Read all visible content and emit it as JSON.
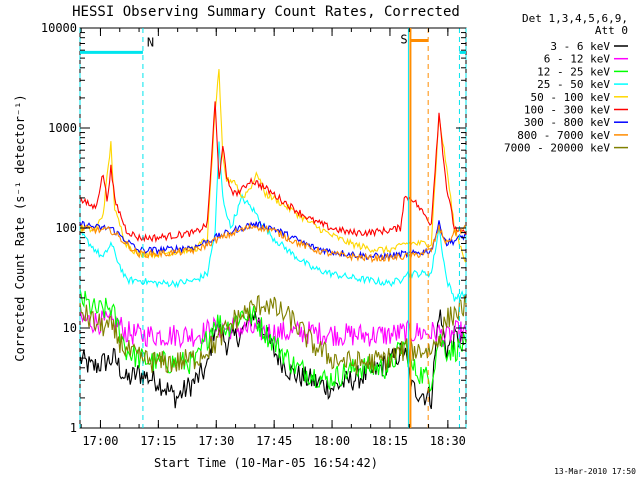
{
  "chart_data": {
    "type": "line",
    "title": "HESSI Observing Summary Count Rates, Corrected",
    "xlabel": "Start Time (10-Mar-05 16:54:42)",
    "ylabel": "Corrected Count Rate (s⁻¹ detector⁻¹)",
    "yscale": "log",
    "ylim": [
      1,
      10000
    ],
    "xlim_minutes": [
      0,
      100
    ],
    "x_units": "minutes after 16:54:42",
    "x_tick_labels": [
      "17:00",
      "17:15",
      "17:30",
      "17:45",
      "18:00",
      "18:15",
      "18:30"
    ],
    "x_tick_minutes": [
      5.3,
      20.3,
      35.3,
      50.3,
      65.3,
      80.3,
      95.3
    ],
    "y_tick_labels": [
      "1",
      "10",
      "100",
      "1000",
      "10000"
    ],
    "y_tick_values": [
      1,
      10,
      100,
      1000,
      10000
    ],
    "legend_header": [
      "Det 1,3,4,5,6,9,",
      "Att 0"
    ],
    "legend_placement": "right",
    "timestamp": "13-Mar-2010 17:50",
    "annotations": [
      {
        "text": "N",
        "color": "#00e5ee"
      },
      {
        "text": "S",
        "color": "#ff8c00"
      }
    ],
    "night_intervals": [
      [
        0,
        16.3
      ],
      [
        98.3,
        100
      ]
    ],
    "saa_interval": [
      85.6,
      90.2
    ],
    "series": [
      {
        "name": "3 - 6 keV",
        "color": "#000000",
        "points": [
          [
            0,
            5
          ],
          [
            3,
            4
          ],
          [
            6,
            4.5
          ],
          [
            9,
            5
          ],
          [
            12,
            3
          ],
          [
            15,
            3.5
          ],
          [
            20,
            3
          ],
          [
            25,
            2
          ],
          [
            30,
            3
          ],
          [
            33,
            4
          ],
          [
            35,
            11
          ],
          [
            38,
            7
          ],
          [
            42,
            9
          ],
          [
            45,
            14
          ],
          [
            48,
            9
          ],
          [
            50,
            6
          ],
          [
            55,
            3.5
          ],
          [
            60,
            3
          ],
          [
            65,
            2.5
          ],
          [
            70,
            3
          ],
          [
            75,
            3.5
          ],
          [
            80,
            4.5
          ],
          [
            84,
            6
          ],
          [
            86,
            2.5
          ],
          [
            91,
            2
          ],
          [
            93,
            15
          ],
          [
            95,
            6
          ],
          [
            97,
            8
          ],
          [
            100,
            7
          ]
        ]
      },
      {
        "name": "6 - 12 keV",
        "color": "#ff00ff",
        "points": [
          [
            0,
            12
          ],
          [
            10,
            11
          ],
          [
            12,
            9
          ],
          [
            15,
            8.5
          ],
          [
            20,
            8.5
          ],
          [
            30,
            8.5
          ],
          [
            35,
            10
          ],
          [
            40,
            10
          ],
          [
            50,
            9
          ],
          [
            60,
            9
          ],
          [
            70,
            8.5
          ],
          [
            80,
            8.5
          ],
          [
            84,
            9
          ],
          [
            86,
            9
          ],
          [
            91,
            9
          ],
          [
            93,
            9
          ],
          [
            95,
            8
          ],
          [
            97,
            9
          ],
          [
            100,
            9
          ]
        ]
      },
      {
        "name": "12 - 25 keV",
        "color": "#00ff00",
        "points": [
          [
            0,
            20
          ],
          [
            4,
            15
          ],
          [
            6,
            15
          ],
          [
            8,
            16
          ],
          [
            10,
            10
          ],
          [
            12,
            6
          ],
          [
            15,
            5
          ],
          [
            20,
            4.5
          ],
          [
            25,
            4.5
          ],
          [
            30,
            4.5
          ],
          [
            33,
            8
          ],
          [
            35,
            12
          ],
          [
            38,
            10
          ],
          [
            42,
            14
          ],
          [
            45,
            13
          ],
          [
            48,
            9
          ],
          [
            52,
            6
          ],
          [
            56,
            4
          ],
          [
            60,
            3.5
          ],
          [
            64,
            3
          ],
          [
            68,
            3.5
          ],
          [
            72,
            4
          ],
          [
            76,
            4
          ],
          [
            80,
            4
          ],
          [
            84,
            7
          ],
          [
            86,
            4
          ],
          [
            91,
            3
          ],
          [
            93,
            8
          ],
          [
            95,
            6
          ],
          [
            97,
            6
          ],
          [
            100,
            7
          ]
        ]
      },
      {
        "name": "25 - 50 keV",
        "color": "#00ffff",
        "points": [
          [
            0,
            90
          ],
          [
            4,
            60
          ],
          [
            6,
            50
          ],
          [
            8,
            70
          ],
          [
            10,
            45
          ],
          [
            12,
            30
          ],
          [
            15,
            30
          ],
          [
            20,
            28
          ],
          [
            25,
            28
          ],
          [
            30,
            30
          ],
          [
            33,
            35
          ],
          [
            35,
            90
          ],
          [
            36,
            700
          ],
          [
            37,
            200
          ],
          [
            39,
            100
          ],
          [
            42,
            200
          ],
          [
            45,
            150
          ],
          [
            48,
            100
          ],
          [
            50,
            80
          ],
          [
            55,
            55
          ],
          [
            60,
            40
          ],
          [
            65,
            35
          ],
          [
            70,
            32
          ],
          [
            75,
            30
          ],
          [
            80,
            28
          ],
          [
            83,
            30
          ],
          [
            84,
            35
          ],
          [
            86,
            35
          ],
          [
            91,
            35
          ],
          [
            93,
            100
          ],
          [
            95,
            30
          ],
          [
            97,
            20
          ],
          [
            100,
            22
          ]
        ]
      },
      {
        "name": "50 - 100 keV",
        "color": "#ffd700",
        "points": [
          [
            0,
            100
          ],
          [
            4,
            95
          ],
          [
            6,
            140
          ],
          [
            8,
            700
          ],
          [
            9,
            150
          ],
          [
            12,
            70
          ],
          [
            15,
            55
          ],
          [
            20,
            55
          ],
          [
            25,
            58
          ],
          [
            30,
            62
          ],
          [
            33,
            80
          ],
          [
            35,
            1500
          ],
          [
            36,
            3600
          ],
          [
            37,
            500
          ],
          [
            38,
            300
          ],
          [
            40,
            300
          ],
          [
            42,
            200
          ],
          [
            44,
            250
          ],
          [
            46,
            350
          ],
          [
            48,
            220
          ],
          [
            50,
            200
          ],
          [
            55,
            150
          ],
          [
            60,
            110
          ],
          [
            65,
            85
          ],
          [
            70,
            70
          ],
          [
            75,
            62
          ],
          [
            80,
            60
          ],
          [
            83,
            65
          ],
          [
            84,
            70
          ],
          [
            86,
            70
          ],
          [
            91,
            70
          ],
          [
            93,
            1300
          ],
          [
            95,
            400
          ],
          [
            97,
            100
          ],
          [
            100,
            45
          ]
        ]
      },
      {
        "name": "100 - 300 keV",
        "color": "#ff0000",
        "points": [
          [
            0,
            190
          ],
          [
            4,
            160
          ],
          [
            6,
            350
          ],
          [
            7,
            190
          ],
          [
            8,
            400
          ],
          [
            9,
            190
          ],
          [
            12,
            95
          ],
          [
            15,
            80
          ],
          [
            20,
            80
          ],
          [
            25,
            85
          ],
          [
            30,
            90
          ],
          [
            33,
            110
          ],
          [
            35,
            1800
          ],
          [
            36,
            300
          ],
          [
            37,
            700
          ],
          [
            38,
            300
          ],
          [
            40,
            220
          ],
          [
            42,
            240
          ],
          [
            44,
            300
          ],
          [
            46,
            280
          ],
          [
            48,
            250
          ],
          [
            50,
            220
          ],
          [
            55,
            160
          ],
          [
            60,
            120
          ],
          [
            65,
            100
          ],
          [
            70,
            90
          ],
          [
            75,
            90
          ],
          [
            80,
            95
          ],
          [
            83,
            100
          ],
          [
            84,
            200
          ],
          [
            86,
            200
          ],
          [
            91,
            110
          ],
          [
            93,
            1400
          ],
          [
            95,
            250
          ],
          [
            97,
            100
          ],
          [
            100,
            85
          ]
        ]
      },
      {
        "name": "300 - 800 keV",
        "color": "#0000ff",
        "points": [
          [
            0,
            110
          ],
          [
            5,
            100
          ],
          [
            8,
            100
          ],
          [
            12,
            75
          ],
          [
            15,
            60
          ],
          [
            20,
            60
          ],
          [
            25,
            62
          ],
          [
            30,
            65
          ],
          [
            35,
            80
          ],
          [
            40,
            95
          ],
          [
            45,
            110
          ],
          [
            50,
            100
          ],
          [
            55,
            80
          ],
          [
            60,
            65
          ],
          [
            65,
            58
          ],
          [
            70,
            55
          ],
          [
            75,
            52
          ],
          [
            80,
            52
          ],
          [
            84,
            55
          ],
          [
            86,
            55
          ],
          [
            91,
            60
          ],
          [
            93,
            110
          ],
          [
            95,
            70
          ],
          [
            97,
            75
          ],
          [
            100,
            85
          ]
        ]
      },
      {
        "name": "800 - 7000 keV",
        "color": "#ff8c00",
        "points": [
          [
            0,
            100
          ],
          [
            5,
            95
          ],
          [
            8,
            95
          ],
          [
            12,
            70
          ],
          [
            15,
            55
          ],
          [
            20,
            55
          ],
          [
            25,
            57
          ],
          [
            30,
            60
          ],
          [
            35,
            75
          ],
          [
            40,
            90
          ],
          [
            45,
            105
          ],
          [
            50,
            95
          ],
          [
            55,
            75
          ],
          [
            60,
            62
          ],
          [
            65,
            55
          ],
          [
            70,
            52
          ],
          [
            75,
            50
          ],
          [
            80,
            50
          ],
          [
            84,
            52
          ],
          [
            86,
            52
          ],
          [
            91,
            60
          ],
          [
            93,
            100
          ],
          [
            95,
            70
          ],
          [
            97,
            90
          ],
          [
            100,
            100
          ]
        ]
      },
      {
        "name": "7000 - 20000 keV",
        "color": "#808000",
        "points": [
          [
            0,
            15
          ],
          [
            4,
            11
          ],
          [
            8,
            10
          ],
          [
            12,
            6
          ],
          [
            15,
            5
          ],
          [
            20,
            4.5
          ],
          [
            25,
            4.5
          ],
          [
            30,
            5
          ],
          [
            35,
            7
          ],
          [
            40,
            12
          ],
          [
            45,
            16
          ],
          [
            48,
            18
          ],
          [
            50,
            16
          ],
          [
            55,
            12
          ],
          [
            60,
            7
          ],
          [
            65,
            5
          ],
          [
            70,
            4.5
          ],
          [
            75,
            4.5
          ],
          [
            80,
            5
          ],
          [
            84,
            6
          ],
          [
            86,
            6
          ],
          [
            91,
            6
          ],
          [
            93,
            8
          ],
          [
            95,
            12
          ],
          [
            97,
            14
          ],
          [
            100,
            17
          ]
        ]
      }
    ]
  }
}
